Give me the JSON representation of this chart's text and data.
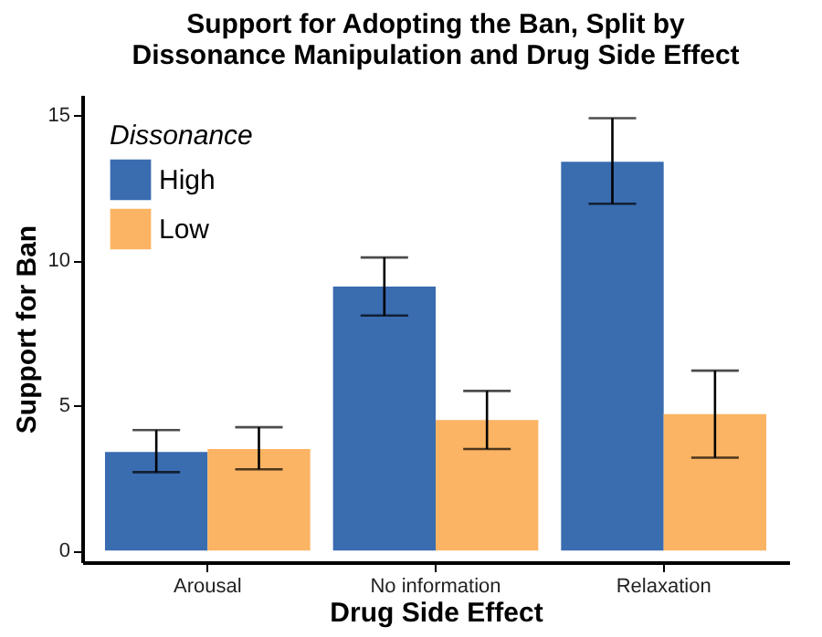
{
  "chart_data": {
    "type": "bar",
    "title": "Support for Adopting the Ban, Split by\nDissonance Manipulation and Drug Side Effect",
    "xlabel": "Drug Side Effect",
    "ylabel": "Support for Ban",
    "legend_title": "Dissonance",
    "categories": [
      "Arousal",
      "No information",
      "Relaxation"
    ],
    "series": [
      {
        "name": "High",
        "color": "#3a6cb0",
        "values": [
          3.4,
          9.1,
          13.4
        ],
        "errors": [
          [
            2.7,
            4.15
          ],
          [
            8.1,
            10.1
          ],
          [
            11.95,
            14.9
          ]
        ]
      },
      {
        "name": "Low",
        "color": "#fbb463",
        "values": [
          3.5,
          4.5,
          4.7
        ],
        "errors": [
          [
            2.8,
            4.25
          ],
          [
            3.5,
            5.5
          ],
          [
            3.2,
            6.2
          ]
        ]
      }
    ],
    "ylim": [
      -0.4,
      15.7
    ],
    "yticks": [
      0,
      5,
      10,
      15
    ],
    "grid": false,
    "legend": "top left"
  }
}
